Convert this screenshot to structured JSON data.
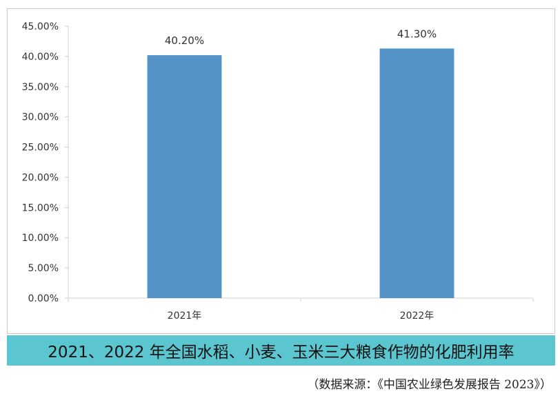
{
  "chart_data": {
    "type": "bar",
    "categories": [
      "2021年",
      "2022年"
    ],
    "values": [
      40.2,
      41.3
    ],
    "data_labels": [
      "40.20%",
      "41.30%"
    ],
    "title": "2021、2022 年全国水稻、小麦、玉米三大粮食作物的化肥利用率",
    "xlabel": "",
    "ylabel": "",
    "ylim": [
      0,
      45
    ],
    "y_ticks": [
      0,
      5,
      10,
      15,
      20,
      25,
      30,
      35,
      40,
      45
    ],
    "y_tick_labels": [
      "0.00%",
      "5.00%",
      "10.00%",
      "15.00%",
      "20.00%",
      "25.00%",
      "30.00%",
      "35.00%",
      "40.00%",
      "45.00%"
    ],
    "grid": false,
    "legend": "none",
    "bar_color": "#5393c8"
  },
  "source_note": "（数据来源：《中国农业绿色发展报告 2023》）"
}
